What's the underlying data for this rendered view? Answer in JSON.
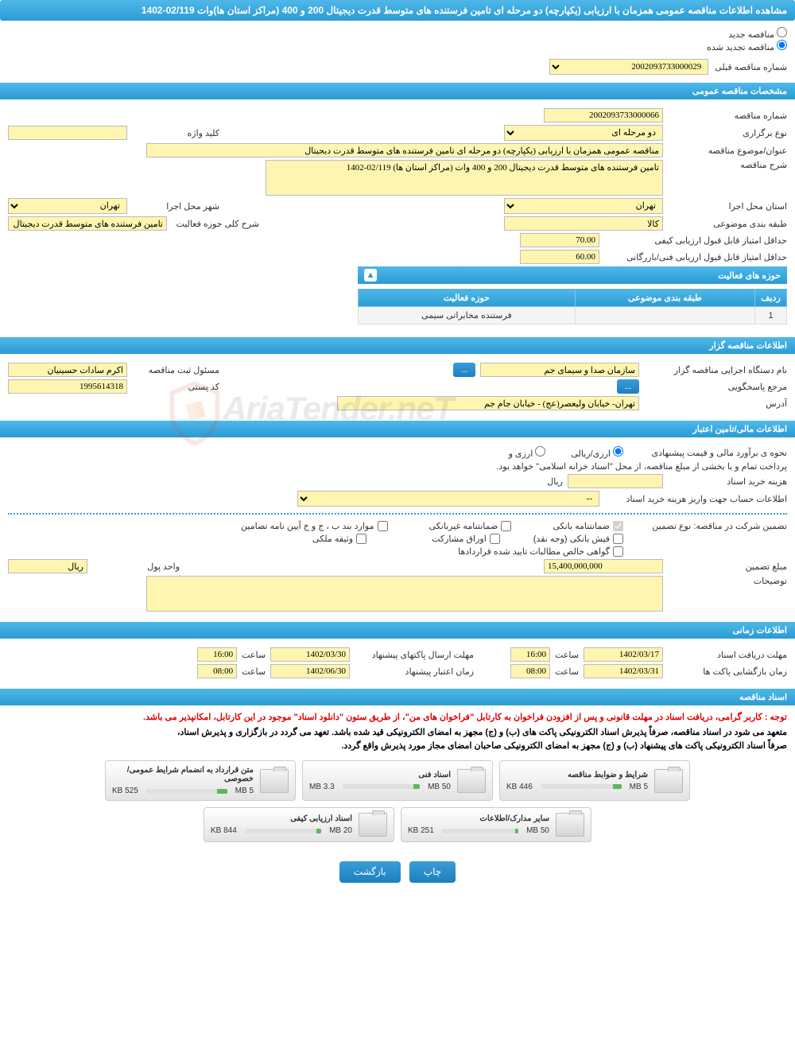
{
  "header_title": "مشاهده اطلاعات مناقصه عمومی همزمان با ارزیابی (یکپارچه) دو مرحله ای تامین فرستنده های متوسط قدرت دیجیتال 200 و 400 (مراکز استان ها)وات 02/119-1402",
  "radios": {
    "new_label": "مناقصه جدید",
    "renew_label": "مناقصه تجدید شده",
    "prev_label": "شماره مناقصه قبلی",
    "prev_value": "2002093733000029"
  },
  "sections": {
    "general": "مشخصات مناقصه عمومی",
    "activities": "حوزه های فعالیت",
    "organizer": "اطلاعات مناقصه گزار",
    "financial": "اطلاعات مالی/تامین اعتبار",
    "timing": "اطلاعات زمانی",
    "documents": "اسناد مناقصه"
  },
  "general": {
    "tender_no_label": "شماره مناقصه",
    "tender_no": "2002093733000066",
    "type_label": "نوع برگزاری",
    "type": "دو مرحله ای",
    "keyword_label": "کلید واژه",
    "keyword": "",
    "subject_label": "عنوان/موضوع مناقصه",
    "subject": "مناقصه عمومی همزمان با ارزیابی (یکپارچه) دو مرحله ای تامین فرستنده های متوسط قدرت دیجیتال",
    "desc_label": "شرح مناقصه",
    "desc": "تامین فرستنده های متوسط قدرت دیجیتال 200 و 400 وات (مراکز استان ها) 02/119-1402",
    "province_label": "استان محل اجرا",
    "province": "تهران",
    "city_label": "شهر محل اجرا",
    "city": "تهران",
    "class_label": "طبقه بندی موضوعی",
    "class": "کالا",
    "activity_desc_label": "شرح کلی حوزه فعالیت",
    "activity_desc": "تامین فرستنده های متوسط قدرت دیجیتال 200 و 400 وات",
    "min_quality_label": "حداقل امتیاز قابل قبول ارزیابی کیفی",
    "min_quality": "70.00",
    "min_tech_label": "حداقل امتیاز قابل قبول ارزیابی فنی/بازرگانی",
    "min_tech": "60.00"
  },
  "activity_table": {
    "col_row": "ردیف",
    "col_class": "طبقه بندی موضوعی",
    "col_activity": "حوزه فعالیت",
    "row1_no": "1",
    "row1_class": "",
    "row1_activity": "فرستنده مخابراتی سیمی"
  },
  "organizer": {
    "org_label": "نام دستگاه اجرایی مناقصه گزار",
    "org": "سازمان صدا و سیمای جم",
    "resp_btn": "...",
    "reg_label": "مسئول ثبت مناقصه",
    "reg": "اکرم سادات حسینیان",
    "ref_label": "مرجع پاسخگویی",
    "ref_btn": "...",
    "postal_label": "کد پستی",
    "postal": "1995614318",
    "address_label": "آدرس",
    "address": "تهران- خیابان ولیعصر(عج) - خیابان جام جم"
  },
  "financial": {
    "estimate_label": "نحوه ی برآورد مالی و قیمت پیشنهادی",
    "opt_rial": "ارزی/ریالی",
    "opt_currency": "ارزی و",
    "payment_note": "پرداخت تمام و یا بخشی از مبلغ مناقصه، از محل \"اسناد خزانه اسلامی\" خواهد بود.",
    "buy_cost_label": "هزینه خرید اسناد",
    "buy_cost_unit": "ریال",
    "account_label": "اطلاعات حساب جهت واریز هزینه خرید اسناد",
    "account_value": "--",
    "guarantee_label": "تضمین شرکت در مناقصه:   نوع تضمین",
    "chk_bank_guarantee": "ضمانتنامه بانکی",
    "chk_nonbank_guarantee": "ضمانتنامه غیربانکی",
    "chk_items": "موارد بند ب ، ج و خ آیین نامه تضامین",
    "chk_cash": "فیش بانکی (وجه نقد)",
    "chk_securities": "اوراق مشارکت",
    "chk_property": "وثیقه ملکی",
    "chk_claims": "گواهی خالص مطالبات تایید شده قراردادها",
    "guarantee_amount_label": "مبلغ تضمین",
    "guarantee_amount": "15,400,000,000",
    "currency_label": "واحد پول",
    "currency": "ریال",
    "notes_label": "توضیحات"
  },
  "timing": {
    "doc_receive_label": "مهلت دریافت اسناد",
    "doc_receive_date": "1402/03/17",
    "hour_label": "ساعت",
    "doc_receive_time": "16:00",
    "proposal_send_label": "مهلت ارسال پاکتهای پیشنهاد",
    "proposal_send_date": "1402/03/30",
    "proposal_send_time": "16:00",
    "envelope_open_label": "زمان بازگشایی پاکت ها",
    "envelope_open_date": "1402/03/31",
    "envelope_open_time": "08:00",
    "proposal_validity_label": "زمان اعتبار پیشنهاد",
    "proposal_validity_date": "1402/06/30",
    "proposal_validity_time": "08:00"
  },
  "documents": {
    "note1": "توجه : کاربر گرامی، دریافت اسناد در مهلت قانونی و پس از افزودن فراخوان به کارتابل \"فراخوان های من\"، از طریق ستون \"دانلود اسناد\" موجود در این کارتابل، امکانپذیر می باشد.",
    "note2": "متعهد می شود در اسناد مناقصه، صرفاً پذیرش اسناد الکترونیکی پاکت های (ب) و (ج) مجهز به امضای الکترونیکی قید شده باشد. تعهد می گردد در بازگزاری و پذیرش اسناد،",
    "note3": "صرفاً اسناد الکترونیکی پاکت های پیشنهاد (ب) و (ج) مجهز به امضای الکترونیکی صاحبان امضای مجاز مورد پذیرش واقع گردد.",
    "files": [
      {
        "title": "شرایط و ضوابط مناقصه",
        "size": "446 KB",
        "capacity": "5 MB",
        "pct": 10
      },
      {
        "title": "اسناد فنی",
        "size": "3.3 MB",
        "capacity": "50 MB",
        "pct": 8
      },
      {
        "title": "متن قرارداد به انضمام شرایط عمومی/خصوصی",
        "size": "525 KB",
        "capacity": "5 MB",
        "pct": 12
      },
      {
        "title": "سایر مدارک/اطلاعات",
        "size": "251 KB",
        "capacity": "50 MB",
        "pct": 4
      },
      {
        "title": "اسناد ارزیابی کیفی",
        "size": "844 KB",
        "capacity": "20 MB",
        "pct": 6
      }
    ]
  },
  "buttons": {
    "print": "چاپ",
    "back": "بازگشت"
  },
  "watermark": "AriaTender.neT"
}
